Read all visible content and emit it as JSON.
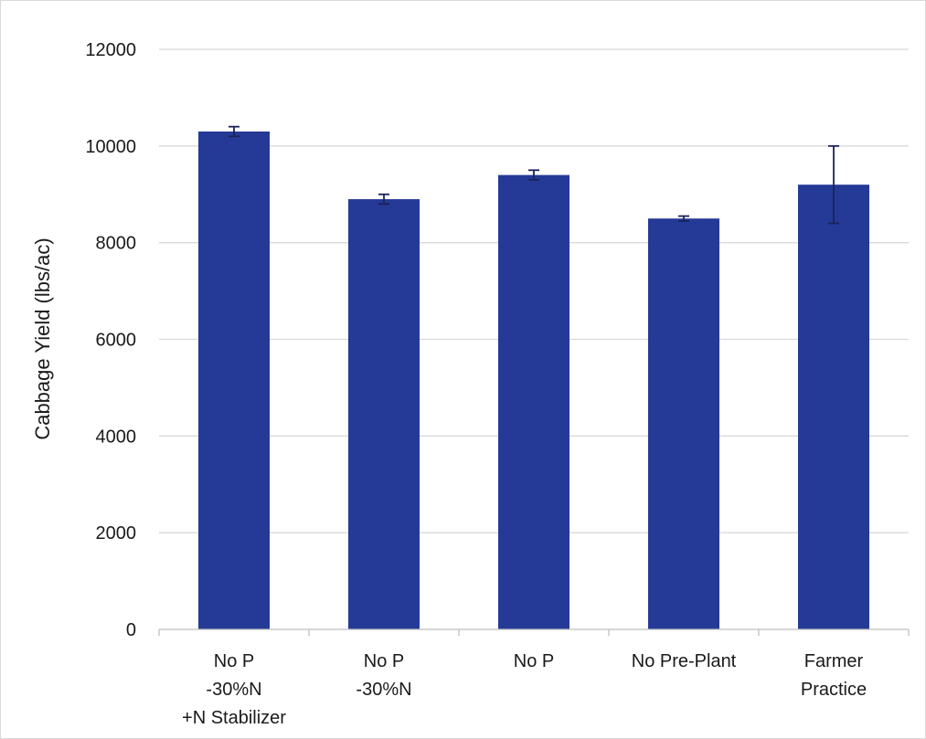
{
  "chart_data": {
    "type": "bar",
    "categories": [
      [
        "No P",
        "-30%N",
        "+N Stabilizer"
      ],
      [
        "No P",
        "-30%N"
      ],
      [
        "No P"
      ],
      [
        "No Pre-Plant"
      ],
      [
        "Farmer",
        "Practice"
      ]
    ],
    "values": [
      10300,
      8900,
      9400,
      8500,
      9200
    ],
    "error_bars": [
      100,
      100,
      100,
      50,
      800
    ],
    "title": "",
    "xlabel": "",
    "ylabel": "Cabbage Yield (lbs/ac)",
    "ylim": [
      0,
      12000
    ],
    "yticks": [
      0,
      2000,
      4000,
      6000,
      8000,
      10000,
      12000
    ],
    "ytick_labels": [
      "0",
      "2000",
      "4000",
      "6000",
      "8000",
      "10000",
      "12000"
    ],
    "grid": true,
    "legend": "none",
    "colors": {
      "bar": "#253a96",
      "error_bar": "#1a2358",
      "grid": "#d9d9d9",
      "axis": "#bfbfbf"
    }
  }
}
